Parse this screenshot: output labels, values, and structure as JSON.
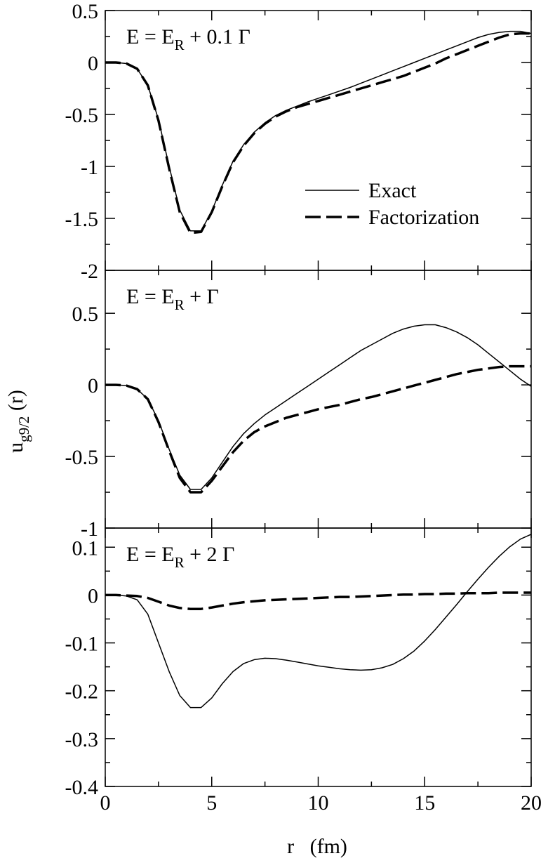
{
  "figure": {
    "ylabel_main": "u",
    "ylabel_sub": "g9/2",
    "ylabel_tail": " (r)",
    "xlabel": "r   (fm)"
  },
  "chart_data": [
    {
      "type": "line",
      "title_parts": [
        "E = E",
        "R",
        " + 0.1 Γ"
      ],
      "xlim": [
        0,
        20
      ],
      "ylim": [
        -2,
        0.5
      ],
      "x_ticks": [
        0,
        5,
        10,
        15,
        20
      ],
      "y_ticks": [
        0.5,
        0,
        -0.5,
        -1,
        -1.5,
        -2
      ],
      "y_tick_labels": [
        "0.5",
        "0",
        "-0.5",
        "-1",
        "-1.5",
        "-2"
      ],
      "legend": {
        "placement": "lower-right",
        "entries": [
          "Exact",
          "Factorization"
        ]
      },
      "series": [
        {
          "name": "Exact",
          "style": "solid",
          "x": [
            0,
            0.5,
            1,
            1.5,
            2,
            2.5,
            3,
            3.5,
            4,
            4.5,
            5,
            5.5,
            6,
            6.5,
            7,
            7.5,
            8,
            8.5,
            9,
            9.5,
            10,
            10.5,
            11,
            11.5,
            12,
            12.5,
            13,
            13.5,
            14,
            14.5,
            15,
            15.5,
            16,
            16.5,
            17,
            17.5,
            18,
            18.5,
            19,
            19.5,
            20
          ],
          "values": [
            0,
            0,
            -0.01,
            -0.06,
            -0.22,
            -0.55,
            -1.0,
            -1.42,
            -1.62,
            -1.62,
            -1.43,
            -1.18,
            -0.95,
            -0.79,
            -0.67,
            -0.58,
            -0.51,
            -0.46,
            -0.42,
            -0.38,
            -0.345,
            -0.31,
            -0.275,
            -0.24,
            -0.2,
            -0.16,
            -0.12,
            -0.08,
            -0.04,
            0.0,
            0.04,
            0.08,
            0.12,
            0.16,
            0.2,
            0.24,
            0.27,
            0.29,
            0.3,
            0.3,
            0.28
          ]
        },
        {
          "name": "Factorization",
          "style": "dashed",
          "x": [
            0,
            0.5,
            1,
            1.5,
            2,
            2.5,
            3,
            3.5,
            4,
            4.5,
            5,
            5.5,
            6,
            6.5,
            7,
            7.5,
            8,
            8.5,
            9,
            9.5,
            10,
            10.5,
            11,
            11.5,
            12,
            12.5,
            13,
            13.5,
            14,
            14.5,
            15,
            15.5,
            16,
            16.5,
            17,
            17.5,
            18,
            18.5,
            19,
            19.5,
            20
          ],
          "values": [
            0,
            0,
            -0.01,
            -0.06,
            -0.22,
            -0.56,
            -1.02,
            -1.44,
            -1.64,
            -1.63,
            -1.44,
            -1.19,
            -0.96,
            -0.8,
            -0.68,
            -0.59,
            -0.52,
            -0.47,
            -0.43,
            -0.4,
            -0.37,
            -0.34,
            -0.31,
            -0.28,
            -0.25,
            -0.22,
            -0.19,
            -0.16,
            -0.13,
            -0.09,
            -0.05,
            -0.01,
            0.04,
            0.08,
            0.12,
            0.16,
            0.2,
            0.24,
            0.27,
            0.28,
            0.28
          ]
        }
      ]
    },
    {
      "type": "line",
      "title_parts": [
        "E = E",
        "R",
        " + Γ"
      ],
      "xlim": [
        0,
        20
      ],
      "ylim": [
        -1,
        0.8
      ],
      "x_ticks": [
        0,
        5,
        10,
        15,
        20
      ],
      "y_ticks": [
        0.5,
        0,
        -0.5,
        -1
      ],
      "y_tick_labels": [
        "0.5",
        "0",
        "-0.5",
        "-1"
      ],
      "series": [
        {
          "name": "Exact",
          "style": "solid",
          "x": [
            0,
            0.5,
            1,
            1.5,
            2,
            2.5,
            3,
            3.5,
            4,
            4.5,
            5,
            5.5,
            6,
            6.5,
            7,
            7.5,
            8,
            8.5,
            9,
            9.5,
            10,
            10.5,
            11,
            11.5,
            12,
            12.5,
            13,
            13.5,
            14,
            14.5,
            15,
            15.5,
            16,
            16.5,
            17,
            17.5,
            18,
            18.5,
            19,
            19.5,
            20
          ],
          "values": [
            0,
            0,
            -0.005,
            -0.03,
            -0.1,
            -0.25,
            -0.45,
            -0.63,
            -0.73,
            -0.73,
            -0.65,
            -0.54,
            -0.43,
            -0.34,
            -0.27,
            -0.21,
            -0.16,
            -0.11,
            -0.06,
            -0.01,
            0.04,
            0.09,
            0.14,
            0.19,
            0.24,
            0.28,
            0.32,
            0.36,
            0.39,
            0.41,
            0.42,
            0.42,
            0.4,
            0.37,
            0.33,
            0.28,
            0.22,
            0.16,
            0.1,
            0.04,
            -0.01
          ]
        },
        {
          "name": "Factorization",
          "style": "dashed",
          "x": [
            0,
            0.5,
            1,
            1.5,
            2,
            2.5,
            3,
            3.5,
            4,
            4.5,
            5,
            5.5,
            6,
            6.5,
            7,
            7.5,
            8,
            8.5,
            9,
            9.5,
            10,
            10.5,
            11,
            11.5,
            12,
            12.5,
            13,
            13.5,
            14,
            14.5,
            15,
            15.5,
            16,
            16.5,
            17,
            17.5,
            18,
            18.5,
            19,
            19.5,
            20
          ],
          "values": [
            0,
            0,
            -0.005,
            -0.03,
            -0.1,
            -0.26,
            -0.46,
            -0.65,
            -0.75,
            -0.75,
            -0.67,
            -0.57,
            -0.47,
            -0.39,
            -0.33,
            -0.29,
            -0.26,
            -0.23,
            -0.21,
            -0.19,
            -0.17,
            -0.155,
            -0.14,
            -0.12,
            -0.1,
            -0.085,
            -0.065,
            -0.045,
            -0.025,
            -0.005,
            0.015,
            0.035,
            0.055,
            0.075,
            0.09,
            0.105,
            0.115,
            0.125,
            0.13,
            0.13,
            0.13
          ]
        }
      ]
    },
    {
      "type": "line",
      "title_parts": [
        "E = E",
        "R",
        " + 2 Γ"
      ],
      "xlim": [
        0,
        20
      ],
      "ylim": [
        -0.4,
        0.14
      ],
      "x_ticks": [
        0,
        5,
        10,
        15,
        20
      ],
      "x_tick_labels": [
        "0",
        "5",
        "10",
        "15",
        "20"
      ],
      "y_ticks": [
        0.1,
        0,
        -0.1,
        -0.2,
        -0.3,
        -0.4
      ],
      "y_tick_labels": [
        "0.1",
        "0",
        "-0.1",
        "-0.2",
        "-0.3",
        "-0.4"
      ],
      "series": [
        {
          "name": "Exact",
          "style": "solid",
          "x": [
            0,
            0.5,
            1,
            1.5,
            2,
            2.5,
            3,
            3.5,
            4,
            4.5,
            5,
            5.5,
            6,
            6.5,
            7,
            7.5,
            8,
            8.5,
            9,
            9.5,
            10,
            10.5,
            11,
            11.5,
            12,
            12.5,
            13,
            13.5,
            14,
            14.5,
            15,
            15.5,
            16,
            16.5,
            17,
            17.5,
            18,
            18.5,
            19,
            19.5,
            20
          ],
          "values": [
            0,
            0,
            -0.002,
            -0.01,
            -0.04,
            -0.1,
            -0.16,
            -0.21,
            -0.235,
            -0.235,
            -0.215,
            -0.185,
            -0.16,
            -0.143,
            -0.135,
            -0.132,
            -0.133,
            -0.136,
            -0.14,
            -0.144,
            -0.148,
            -0.151,
            -0.154,
            -0.156,
            -0.157,
            -0.156,
            -0.152,
            -0.145,
            -0.133,
            -0.117,
            -0.096,
            -0.072,
            -0.046,
            -0.02,
            0.007,
            0.033,
            0.058,
            0.081,
            0.101,
            0.117,
            0.127
          ]
        },
        {
          "name": "Factorization",
          "style": "dashed",
          "x": [
            0,
            0.5,
            1,
            1.5,
            2,
            2.5,
            3,
            3.5,
            4,
            4.5,
            5,
            5.5,
            6,
            6.5,
            7,
            7.5,
            8,
            8.5,
            9,
            9.5,
            10,
            10.5,
            11,
            11.5,
            12,
            12.5,
            13,
            13.5,
            14,
            14.5,
            15,
            15.5,
            16,
            16.5,
            17,
            17.5,
            18,
            18.5,
            19,
            19.5,
            20
          ],
          "values": [
            0,
            0,
            -0.001,
            -0.002,
            -0.006,
            -0.014,
            -0.022,
            -0.027,
            -0.029,
            -0.029,
            -0.026,
            -0.022,
            -0.018,
            -0.015,
            -0.013,
            -0.011,
            -0.01,
            -0.009,
            -0.008,
            -0.007,
            -0.006,
            -0.005,
            -0.004,
            -0.004,
            -0.003,
            -0.002,
            -0.001,
            0.0,
            0.001,
            0.001,
            0.002,
            0.002,
            0.003,
            0.003,
            0.004,
            0.004,
            0.004,
            0.005,
            0.005,
            0.005,
            0.005
          ]
        }
      ]
    }
  ]
}
